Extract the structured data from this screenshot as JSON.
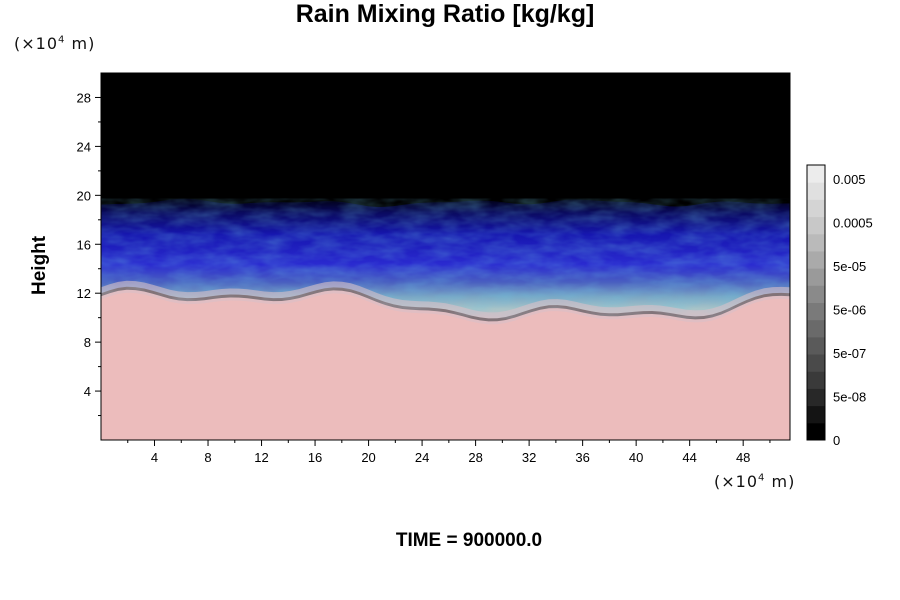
{
  "chart_data": {
    "type": "heatmap",
    "title": "Rain Mixing Ratio [kg/kg]",
    "ylabel": "Height",
    "xlabel": "",
    "x_unit": "(×10",
    "x_unit_exp": "4",
    "x_unit_tail": " m)",
    "y_unit": "(×10",
    "y_unit_exp": "4",
    "y_unit_tail": " m)",
    "xlim": [
      0,
      51.5
    ],
    "ylim": [
      0,
      30
    ],
    "x_ticks": [
      "4",
      "8",
      "12",
      "16",
      "20",
      "24",
      "28",
      "32",
      "36",
      "40",
      "44",
      "48"
    ],
    "y_ticks": [
      "4",
      "8",
      "12",
      "16",
      "20",
      "24",
      "28"
    ],
    "colorbar": {
      "labels": [
        "0.005",
        "0.0005",
        "5e-05",
        "5e-06",
        "5e-07",
        "5e-08",
        "0"
      ],
      "colors": [
        "#000000",
        "#141414",
        "#282828",
        "#3a3a3a",
        "#4a4a4a",
        "#5a5a5a",
        "#6a6a6a",
        "#7a7a7a",
        "#8a8a8a",
        "#9a9a9a",
        "#aaaaaa",
        "#bababa",
        "#c8c8c8",
        "#d4d4d4",
        "#e0e0e0",
        "#ececec"
      ]
    },
    "regions": {
      "upper": "#000000",
      "band": "#1010a8",
      "lower": "#ecbcbc"
    }
  },
  "footer": {
    "time_label": "TIME = 900000.0"
  }
}
